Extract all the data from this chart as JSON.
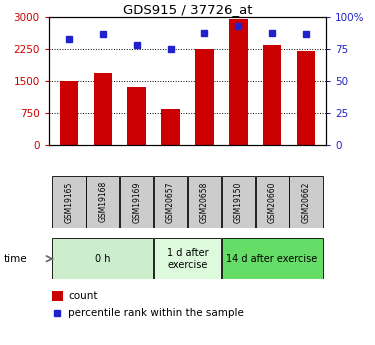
{
  "title": "GDS915 / 37726_at",
  "samples": [
    "GSM19165",
    "GSM19168",
    "GSM19169",
    "GSM20657",
    "GSM20658",
    "GSM19150",
    "GSM20660",
    "GSM20662"
  ],
  "bar_values": [
    1500,
    1700,
    1350,
    850,
    2250,
    2950,
    2350,
    2200
  ],
  "percentile_values": [
    83,
    87,
    78,
    75,
    88,
    93,
    88,
    87
  ],
  "bar_color": "#cc0000",
  "dot_color": "#2222cc",
  "left_yticks": [
    0,
    750,
    1500,
    2250,
    3000
  ],
  "right_yticks": [
    0,
    25,
    50,
    75,
    100
  ],
  "ylim_left": [
    0,
    3000
  ],
  "ylim_right": [
    0,
    100
  ],
  "groups": [
    {
      "label": "0 h",
      "start": 0,
      "end": 3,
      "color": "#cceecc"
    },
    {
      "label": "1 d after\nexercise",
      "start": 3,
      "end": 5,
      "color": "#ddfadd"
    },
    {
      "label": "14 d after exercise",
      "start": 5,
      "end": 8,
      "color": "#66dd66"
    }
  ],
  "sample_bg_color": "#cccccc",
  "legend_count_label": "count",
  "legend_pct_label": "percentile rank within the sample",
  "time_label": "time",
  "bg_color": "#ffffff",
  "tick_color_left": "#cc0000",
  "tick_color_right": "#2222cc"
}
